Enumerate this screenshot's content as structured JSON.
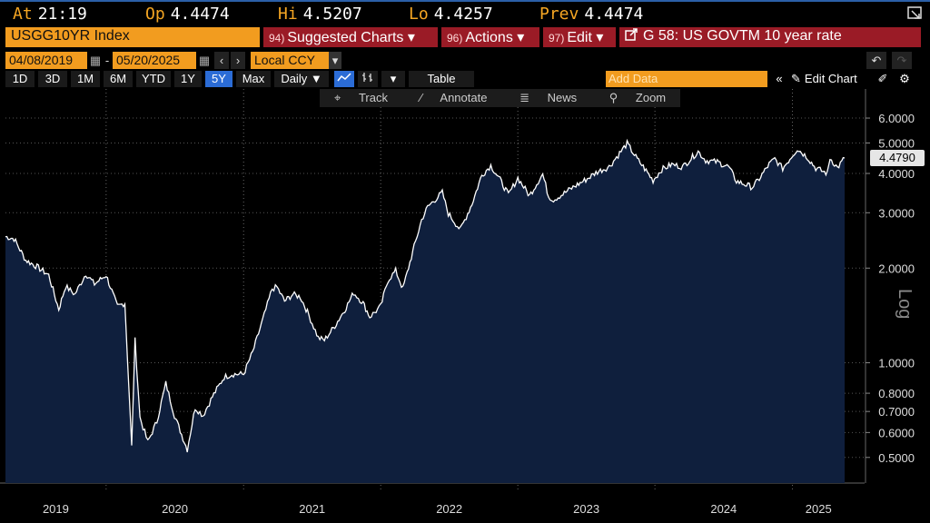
{
  "quote": {
    "at_label": "At",
    "at_value": "21:19",
    "op_label": "Op",
    "op_value": "4.4474",
    "hi_label": "Hi",
    "hi_value": "4.5207",
    "lo_label": "Lo",
    "lo_value": "4.4257",
    "prev_label": "Prev",
    "prev_value": "4.4474"
  },
  "toolbar": {
    "ticker": "USGG10YR Index",
    "suggested_num": "94)",
    "suggested_label": "Suggested Charts ▾",
    "actions_num": "96)",
    "actions_label": "Actions ▾",
    "edit_num": "97)",
    "edit_label": "Edit ▾",
    "title": "G 58: US GOVTM 10 year rate"
  },
  "dates": {
    "start": "04/08/2019",
    "end": "05/20/2025",
    "currency": "Local CCY"
  },
  "ranges": [
    "1D",
    "3D",
    "1M",
    "6M",
    "YTD",
    "1Y",
    "5Y",
    "Max"
  ],
  "active_range": "5Y",
  "frequency": "Daily ▼",
  "table_label": "Table",
  "add_data_placeholder": "Add Data",
  "edit_chart_label": "Edit Chart",
  "chart_tools": {
    "track": "Track",
    "annotate": "Annotate",
    "news": "News",
    "zoom": "Zoom"
  },
  "colors": {
    "accent_orange": "#f29c1f",
    "menu_red": "#9a1b26",
    "area_fill": "#0f1f3d",
    "line": "#ffffff",
    "active_blue": "#2b6cd6"
  },
  "chart_data": {
    "type": "area",
    "title": "",
    "ylabel": "Log",
    "y_scale": "log",
    "ylim": [
      0.42,
      6.5
    ],
    "y_ticks": [
      {
        "value": 6.0,
        "label": "6.0000"
      },
      {
        "value": 5.0,
        "label": "5.0000"
      },
      {
        "value": 4.0,
        "label": "4.0000"
      },
      {
        "value": 3.0,
        "label": "3.0000"
      },
      {
        "value": 2.0,
        "label": "2.0000"
      },
      {
        "value": 1.0,
        "label": "1.0000"
      },
      {
        "value": 0.8,
        "label": "0.8000"
      },
      {
        "value": 0.7,
        "label": "0.7000"
      },
      {
        "value": 0.6,
        "label": "0.6000"
      },
      {
        "value": 0.5,
        "label": "0.5000"
      }
    ],
    "last_value_label": "4.4790",
    "last_value": 4.479,
    "x_years": [
      "2019",
      "2020",
      "2021",
      "2022",
      "2023",
      "2024",
      "2025"
    ],
    "grid": true,
    "series": [
      {
        "x": [
          "2019-04-08",
          "2019-05-01",
          "2019-06-01",
          "2019-07-01",
          "2019-08-01",
          "2019-08-28",
          "2019-09-15",
          "2019-10-10",
          "2019-11-08",
          "2019-12-01",
          "2020-01-01",
          "2020-01-31",
          "2020-02-20",
          "2020-03-09",
          "2020-03-18",
          "2020-03-31",
          "2020-04-21",
          "2020-05-15",
          "2020-06-08",
          "2020-07-01",
          "2020-08-04",
          "2020-08-25",
          "2020-09-15",
          "2020-10-10",
          "2020-11-10",
          "2020-12-01",
          "2021-01-01",
          "2021-01-25",
          "2021-02-25",
          "2021-03-18",
          "2021-03-31",
          "2021-04-20",
          "2021-05-12",
          "2021-06-01",
          "2021-06-20",
          "2021-07-19",
          "2021-08-04",
          "2021-09-01",
          "2021-10-01",
          "2021-10-21",
          "2021-11-15",
          "2021-12-03",
          "2022-01-01",
          "2022-01-20",
          "2022-02-10",
          "2022-03-01",
          "2022-03-31",
          "2022-04-20",
          "2022-05-06",
          "2022-06-14",
          "2022-06-30",
          "2022-08-01",
          "2022-09-01",
          "2022-09-27",
          "2022-10-21",
          "2022-11-15",
          "2022-12-07",
          "2023-01-01",
          "2023-02-01",
          "2023-03-08",
          "2023-03-24",
          "2023-04-06",
          "2023-05-01",
          "2023-06-01",
          "2023-07-01",
          "2023-08-01",
          "2023-09-01",
          "2023-10-19",
          "2023-11-15",
          "2023-12-01",
          "2023-12-27",
          "2024-01-19",
          "2024-02-15",
          "2024-03-15",
          "2024-04-25",
          "2024-05-15",
          "2024-06-15",
          "2024-07-15",
          "2024-08-05",
          "2024-09-16",
          "2024-10-01",
          "2024-10-31",
          "2024-11-15",
          "2024-12-06",
          "2025-01-14",
          "2025-02-10",
          "2025-03-04",
          "2025-04-04",
          "2025-04-11",
          "2025-05-01",
          "2025-05-20"
        ],
        "values": [
          2.52,
          2.48,
          2.12,
          2.02,
          1.9,
          1.48,
          1.75,
          1.65,
          1.92,
          1.78,
          1.9,
          1.51,
          1.55,
          0.54,
          1.18,
          0.67,
          0.56,
          0.65,
          0.86,
          0.68,
          0.53,
          0.72,
          0.68,
          0.78,
          0.9,
          0.92,
          0.92,
          1.08,
          1.42,
          1.72,
          1.74,
          1.57,
          1.65,
          1.62,
          1.45,
          1.2,
          1.18,
          1.31,
          1.5,
          1.67,
          1.55,
          1.4,
          1.51,
          1.83,
          1.96,
          1.72,
          2.34,
          2.85,
          3.13,
          3.48,
          2.98,
          2.65,
          3.2,
          3.95,
          4.24,
          3.82,
          3.42,
          3.87,
          3.4,
          3.98,
          3.38,
          3.3,
          3.44,
          3.64,
          3.82,
          4.05,
          4.2,
          4.98,
          4.44,
          4.2,
          3.8,
          4.12,
          4.27,
          4.2,
          4.7,
          4.4,
          4.35,
          4.2,
          3.78,
          3.62,
          3.79,
          4.28,
          4.45,
          4.15,
          4.79,
          4.5,
          4.16,
          4.0,
          4.48,
          4.17,
          4.48
        ]
      }
    ]
  }
}
